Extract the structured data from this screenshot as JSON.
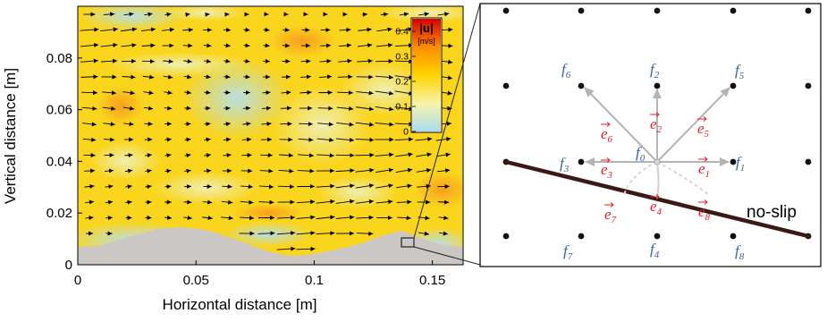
{
  "plot": {
    "xlabel": "Horizontal distance [m]",
    "ylabel": "Vertical distance [m]",
    "x_ticks": [
      {
        "value": 0,
        "label": "0"
      },
      {
        "value": 0.05,
        "label": "0.05"
      },
      {
        "value": 0.1,
        "label": "0.1"
      },
      {
        "value": 0.15,
        "label": "0.15"
      }
    ],
    "y_ticks": [
      {
        "value": 0,
        "label": "0"
      },
      {
        "value": 0.02,
        "label": "0.02"
      },
      {
        "value": 0.04,
        "label": "0.04"
      },
      {
        "value": 0.06,
        "label": "0.06"
      },
      {
        "value": 0.08,
        "label": "0.08"
      }
    ],
    "xlim": [
      0,
      0.163
    ],
    "ylim": [
      0,
      0.1
    ],
    "colorbar": {
      "title": "|u|",
      "unit": "[m/s]",
      "tick_labels": [
        "0.4",
        "0.3",
        "0.2",
        "0.1",
        "0"
      ],
      "tick_values": [
        0.4,
        0.3,
        0.2,
        0.1,
        0
      ],
      "range": [
        0,
        0.45
      ],
      "colors": [
        "#a9dcf0",
        "#f8f3a8",
        "#ffd400",
        "#ff8c00",
        "#d40000"
      ]
    },
    "field_color": "#fad51e",
    "terrain_color": "#cbc7c4"
  },
  "lattice": {
    "nodes": [
      {
        "name": "f",
        "sub": "0"
      },
      {
        "name": "f",
        "sub": "1"
      },
      {
        "name": "f",
        "sub": "2"
      },
      {
        "name": "f",
        "sub": "3"
      },
      {
        "name": "f",
        "sub": "4"
      },
      {
        "name": "f",
        "sub": "5"
      },
      {
        "name": "f",
        "sub": "6"
      },
      {
        "name": "f",
        "sub": "7"
      },
      {
        "name": "f",
        "sub": "8"
      }
    ],
    "vectors": [
      {
        "name": "e",
        "sub": "1"
      },
      {
        "name": "e",
        "sub": "2"
      },
      {
        "name": "e",
        "sub": "3"
      },
      {
        "name": "e",
        "sub": "4"
      },
      {
        "name": "e",
        "sub": "5"
      },
      {
        "name": "e",
        "sub": "6"
      },
      {
        "name": "e",
        "sub": "7"
      },
      {
        "name": "e",
        "sub": "8"
      }
    ],
    "wall_label": "no-slip",
    "node_label_color": "#3a5fa8",
    "vector_label_color": "#e0202a",
    "arrow_color": "#b4b4b4",
    "wall_color": "#3a1a14"
  }
}
